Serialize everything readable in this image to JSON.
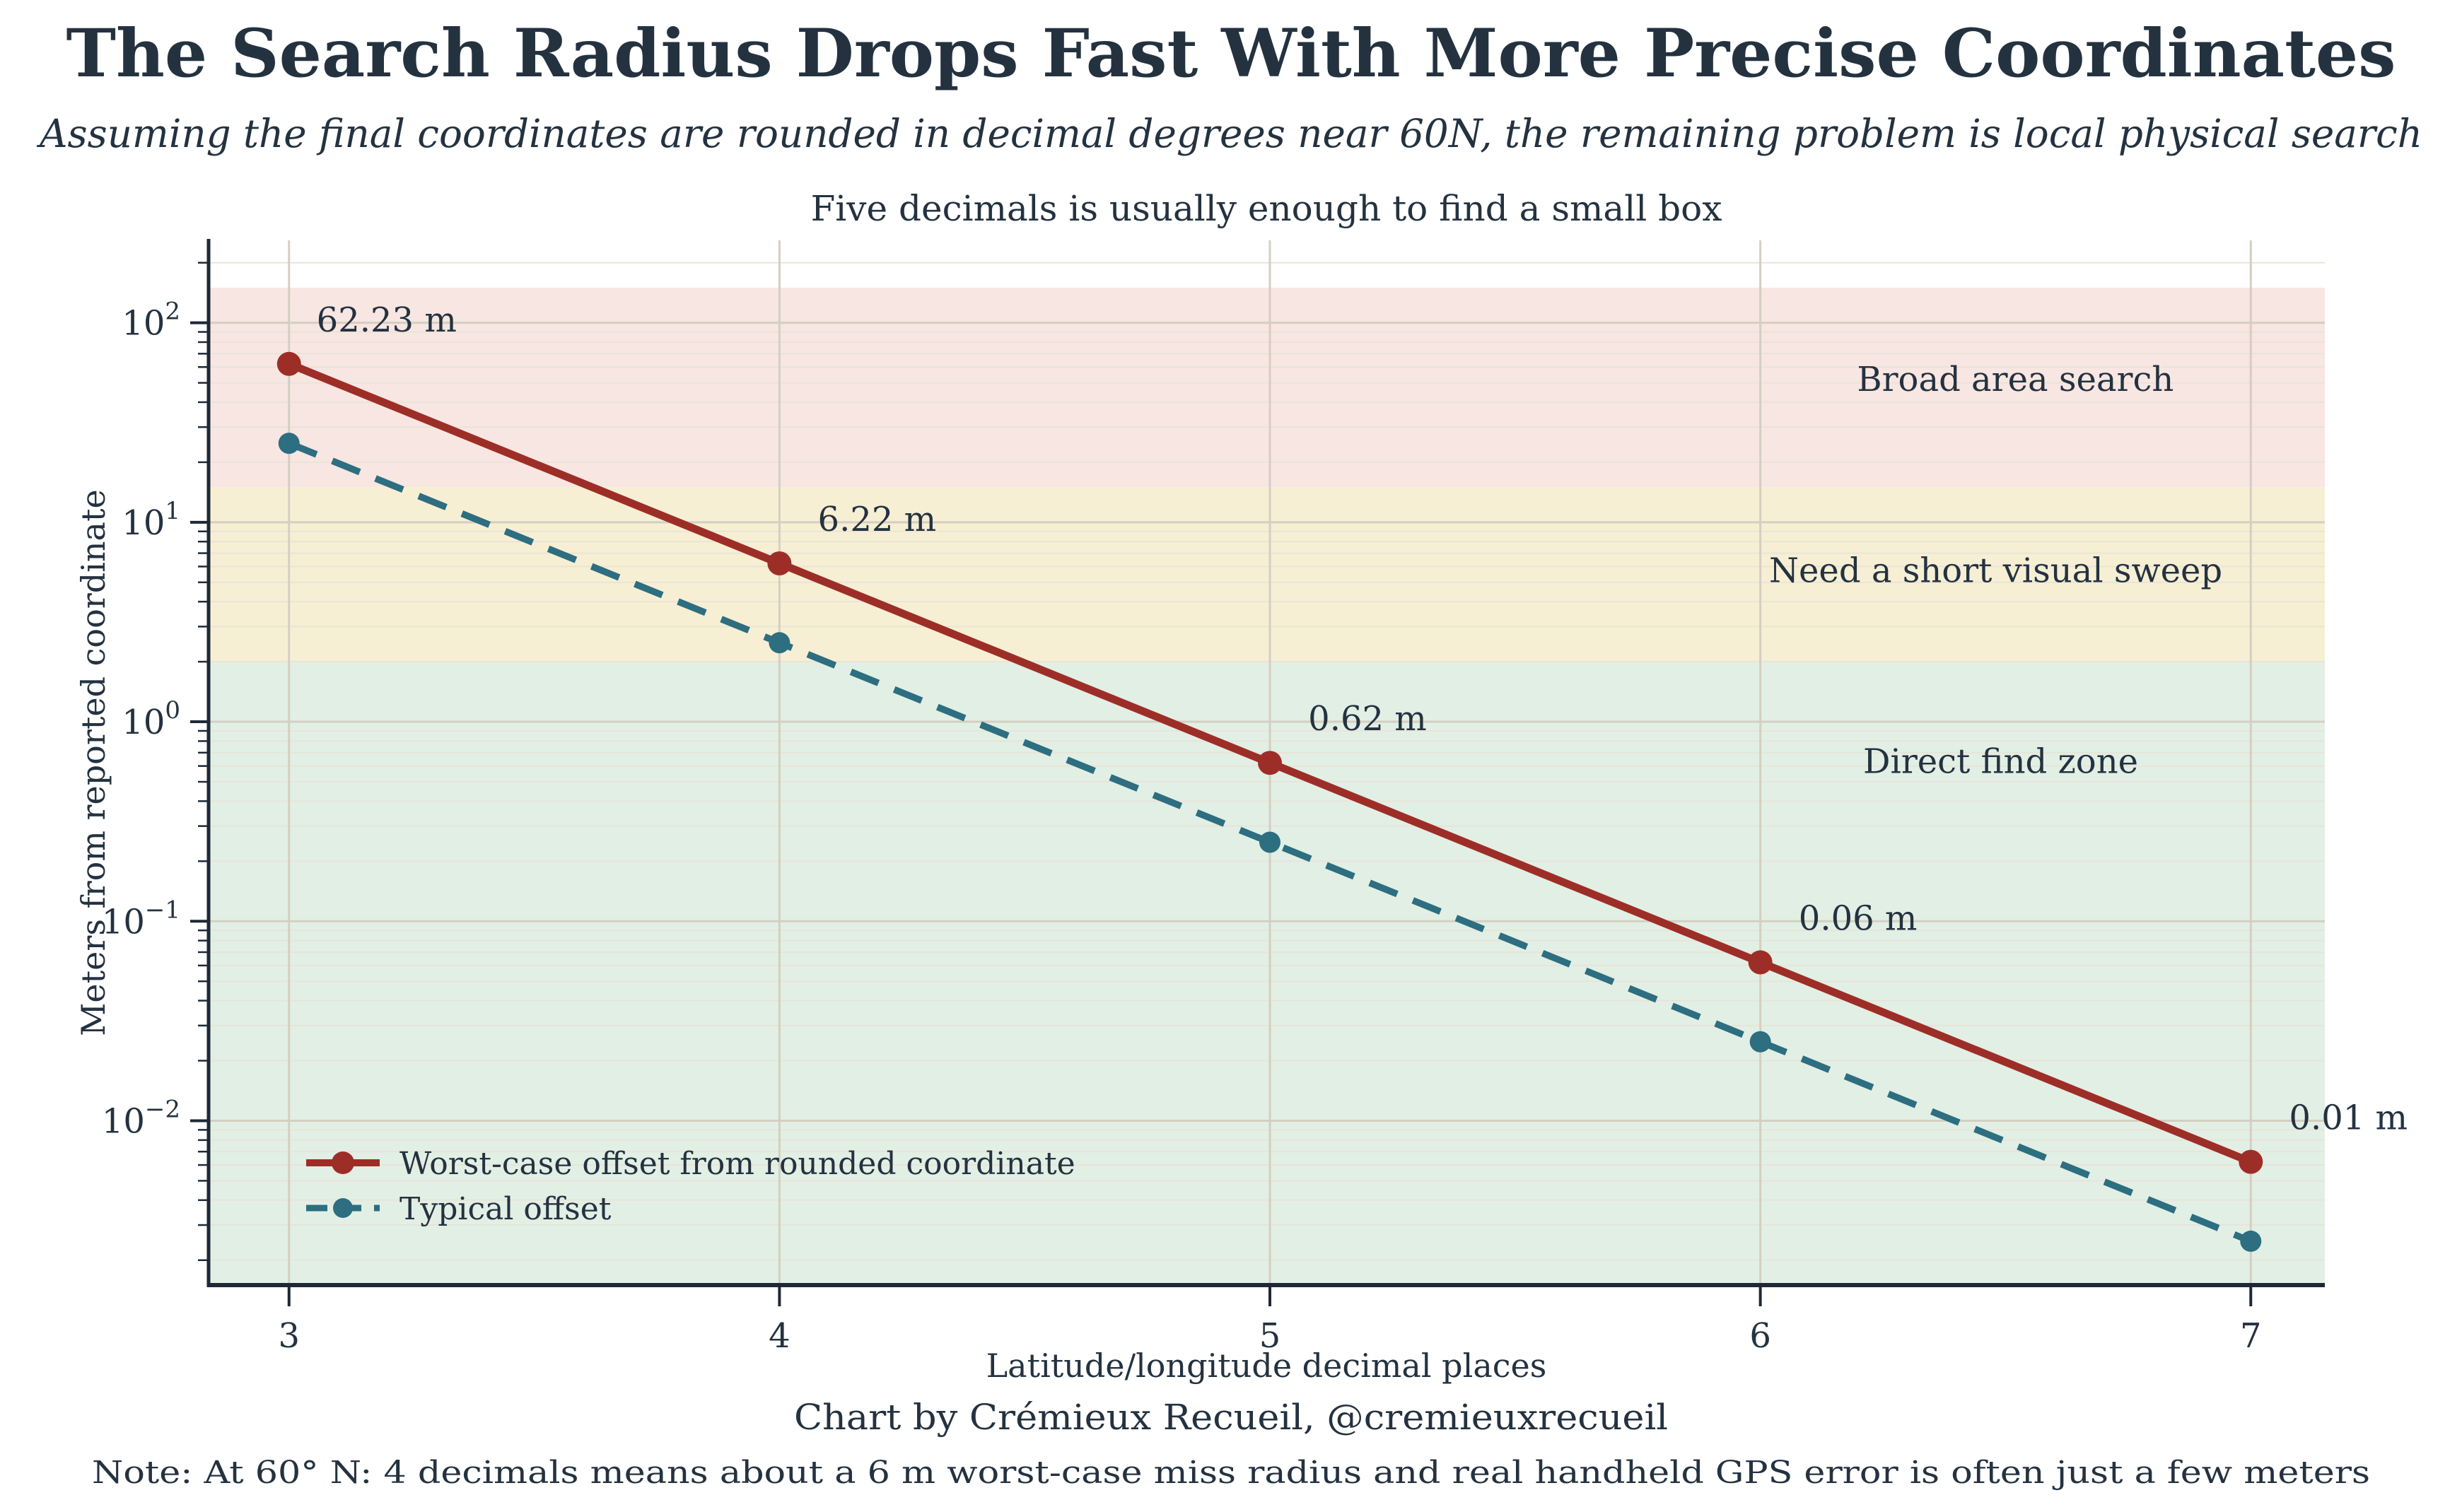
{
  "page": {
    "title": "The Search Radius Drops Fast With More Precise Coordinates",
    "subtitle": "Assuming the final coordinates are rounded in decimal degrees near 60N, the remaining problem is local physical search",
    "caption": "Chart by Crémieux Recueil, @cremieuxrecueil",
    "note": "Note: At 60° N: 4 decimals means about a 6 m worst-case miss radius and real handheld GPS error is often just a few meters"
  },
  "colors": {
    "ink": "#243240",
    "spine": "#1e2936",
    "grid_major": "#d4cfc1",
    "grid_minor": "#e8e3d7",
    "worst_case": "#9d2e27",
    "typical": "#2d6e80",
    "zone_broad": "#f8e6e2",
    "zone_sweep": "#f7efd4",
    "zone_direct": "#e2efe5"
  },
  "chart_data": {
    "type": "line",
    "title": "Five decimals is usually enough to find a small box",
    "xlabel": "Latitude/longitude decimal places",
    "ylabel": "Meters from reported coordinate",
    "x": [
      3,
      4,
      5,
      6,
      7
    ],
    "xticklabels": [
      "3",
      "4",
      "5",
      "6",
      "7"
    ],
    "yscale": "log",
    "xlim": [
      2.836,
      7.151
    ],
    "ylim": [
      0.0015,
      259
    ],
    "ytick_exponents": [
      "2",
      "1",
      "0",
      "−1",
      "−2"
    ],
    "grid": true,
    "legend_position": "lower left",
    "series": [
      {
        "name": "Worst-case offset from rounded coordinate",
        "color": "#9d2e27",
        "style": "solid",
        "values": [
          62.23,
          6.223,
          0.6223,
          0.06223,
          0.006223
        ],
        "point_labels": [
          "62.23 m",
          "6.22 m",
          "0.62 m",
          "0.06 m",
          "0.01 m"
        ]
      },
      {
        "name": "Typical offset",
        "color": "#2d6e80",
        "style": "dashed",
        "values": [
          24.89,
          2.489,
          0.2489,
          0.02489,
          0.002489
        ]
      }
    ],
    "zones": [
      {
        "label": "Broad area search",
        "from": 15,
        "to": 150,
        "color": "#f8e6e2",
        "label_x": 6.52,
        "label_y": 52
      },
      {
        "label": "Need a short visual sweep",
        "from": 2,
        "to": 15,
        "color": "#f7efd4",
        "label_x": 6.48,
        "label_y": 5.7
      },
      {
        "label": "Direct find zone",
        "from": 0.0015,
        "to": 2,
        "color": "#e2efe5",
        "label_x": 6.49,
        "label_y": 0.63
      }
    ]
  }
}
